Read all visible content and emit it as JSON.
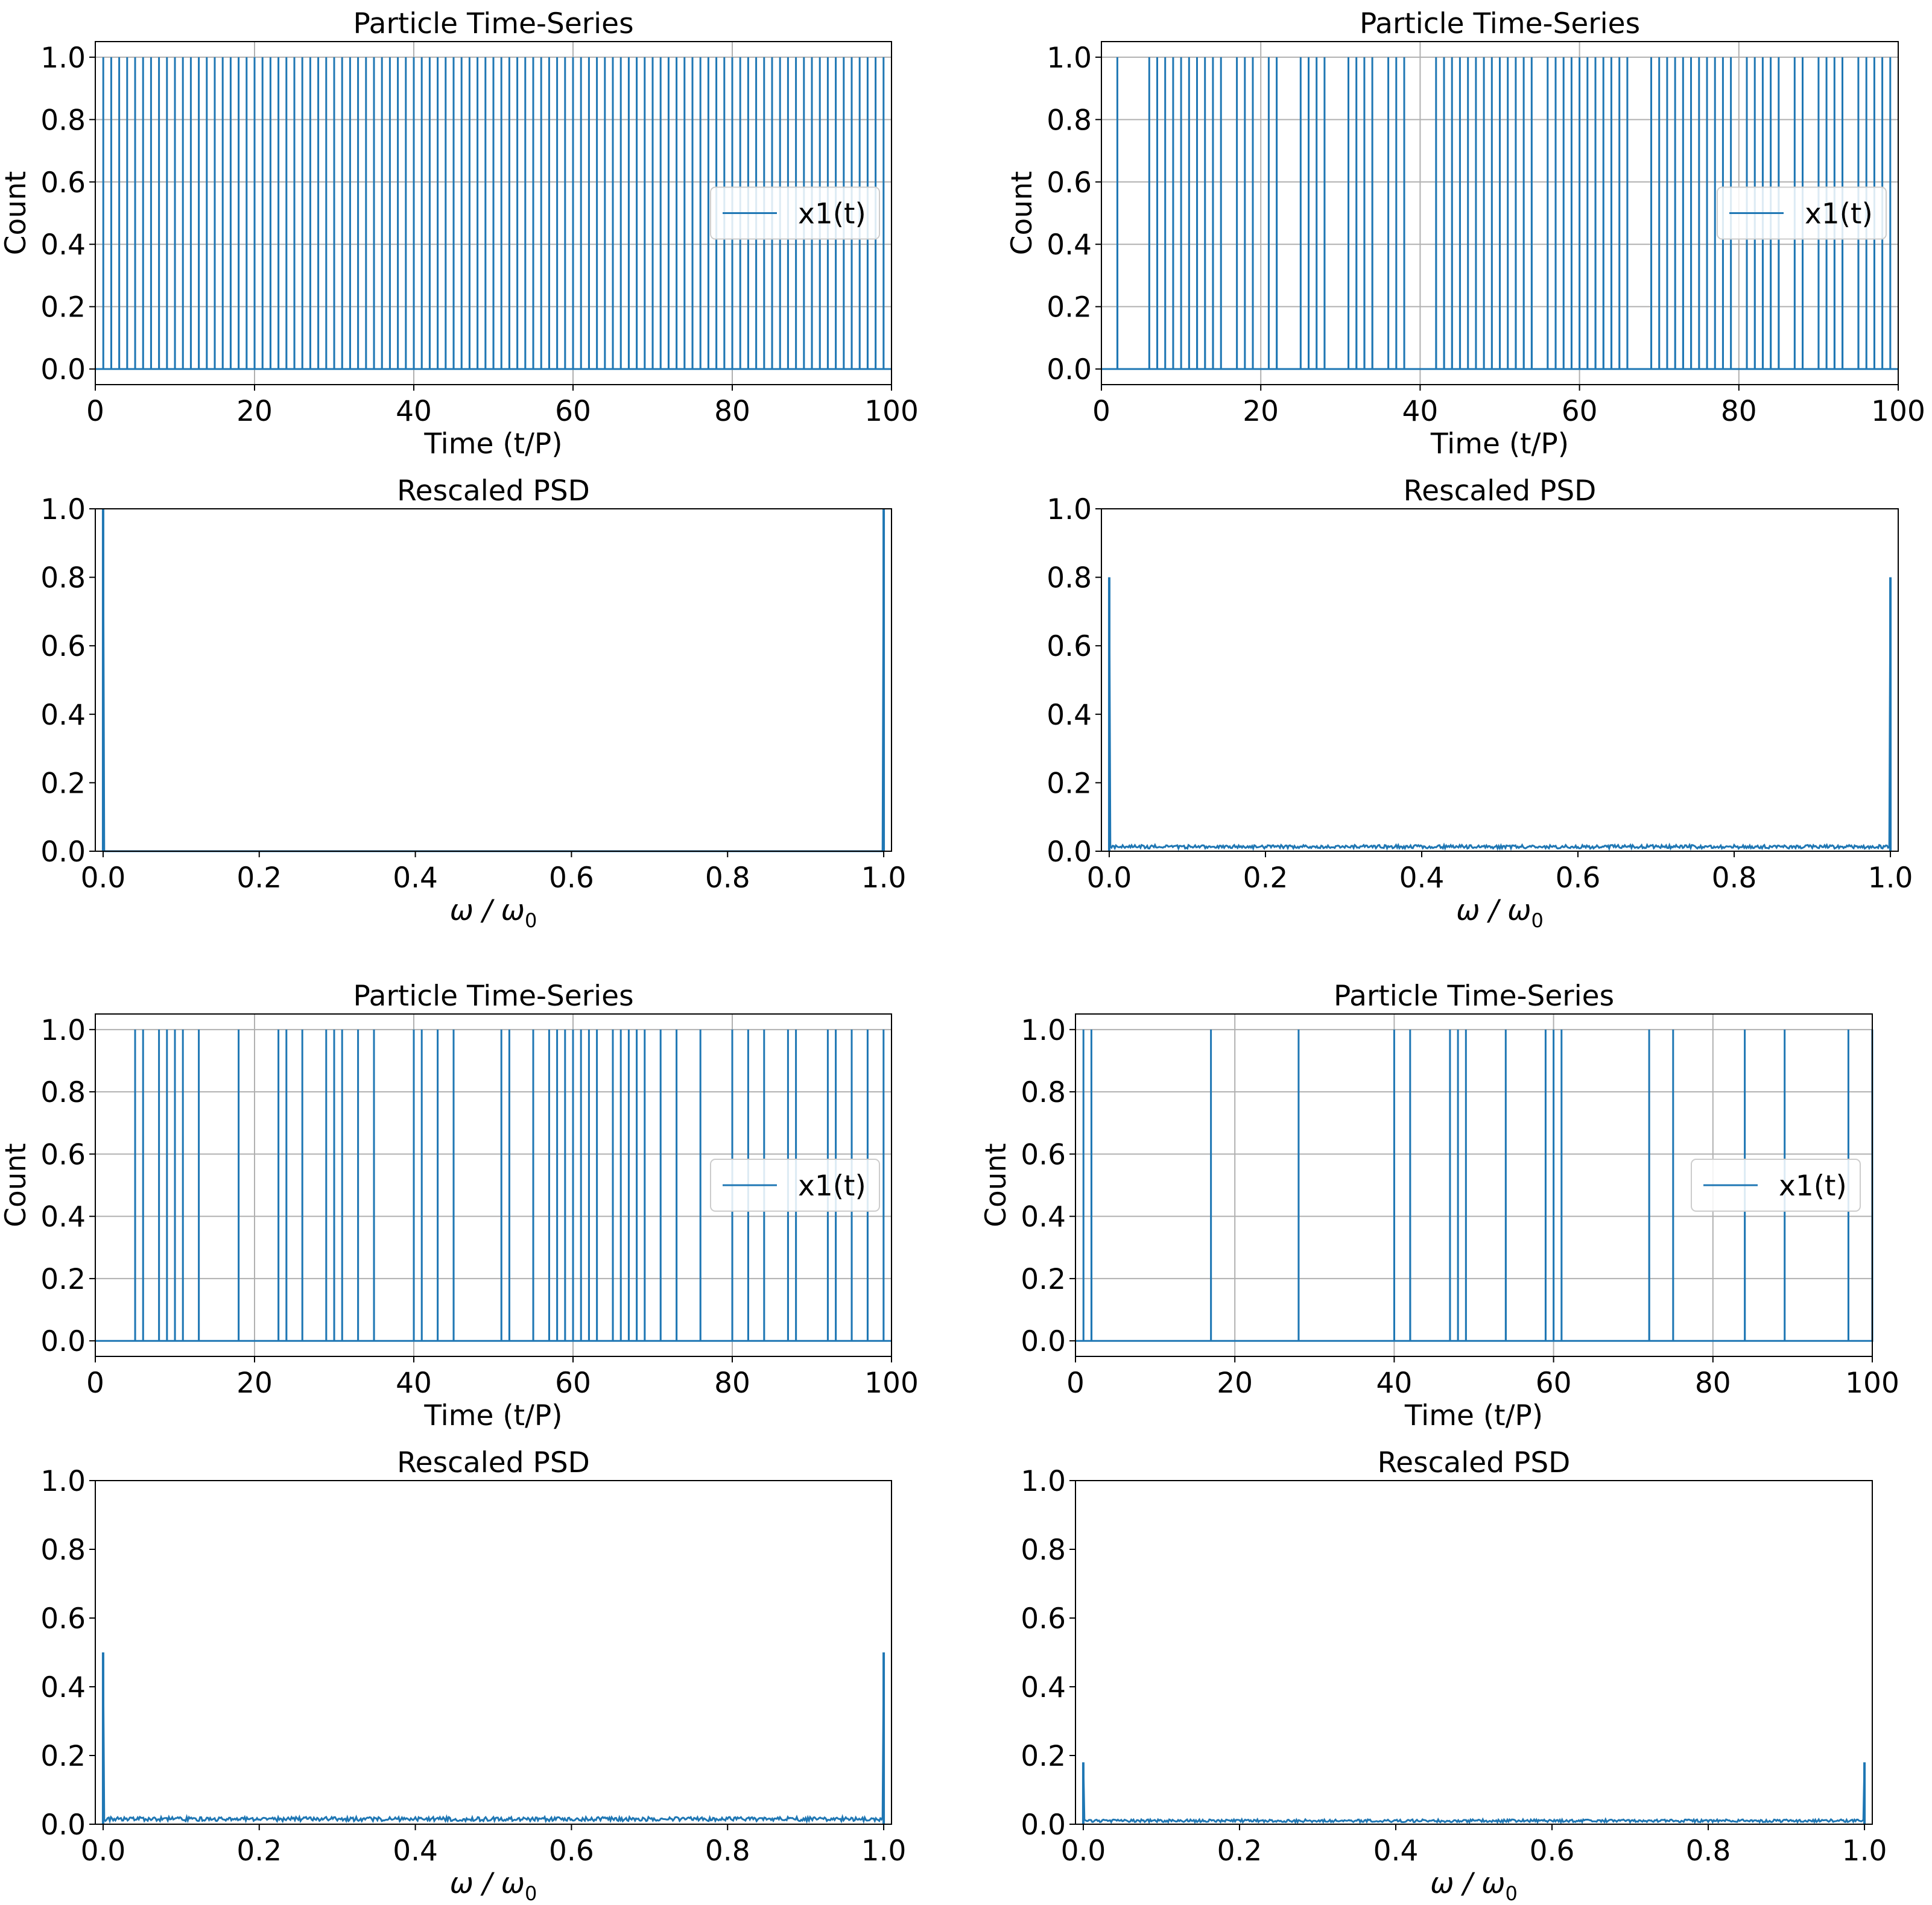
{
  "figure": {
    "rows": 4,
    "cols": 2,
    "line_color": "#1f77b4",
    "grid_color": "#b0b0b0"
  },
  "chart_data": [
    {
      "type": "line",
      "title": "Particle Time-Series",
      "xlabel": "Time (t/P)",
      "ylabel": "Count",
      "xlim": [
        0,
        100
      ],
      "ylim": [
        -0.05,
        1.05
      ],
      "xticks": [
        0,
        20,
        40,
        60,
        80,
        100
      ],
      "xtick_labels": [
        "0",
        "20",
        "40",
        "60",
        "80",
        "100"
      ],
      "yticks": [
        0,
        0.2,
        0.4,
        0.6,
        0.8,
        1.0
      ],
      "ytick_labels": [
        "0.0",
        "0.2",
        "0.4",
        "0.6",
        "0.8",
        "1.0"
      ],
      "grid": true,
      "legend": {
        "entries": [
          "x1(t)"
        ],
        "location": "center-right"
      },
      "series": [
        {
          "name": "x1(t)",
          "spike_times": [
            1,
            2,
            3,
            4,
            5,
            6,
            7,
            8,
            9,
            10,
            11,
            12,
            13,
            14,
            15,
            16,
            17,
            18,
            19,
            20,
            21,
            22,
            23,
            24,
            25,
            26,
            27,
            28,
            29,
            30,
            31,
            32,
            33,
            34,
            35,
            36,
            37,
            38,
            39,
            40,
            41,
            42,
            43,
            44,
            45,
            46,
            47,
            48,
            49,
            50,
            51,
            52,
            53,
            54,
            55,
            56,
            57,
            58,
            59,
            60,
            61,
            62,
            63,
            64,
            65,
            66,
            67,
            68,
            69,
            70,
            71,
            72,
            73,
            74,
            75,
            76,
            77,
            78,
            79,
            80,
            81,
            82,
            83,
            84,
            85,
            86,
            87,
            88,
            89,
            90,
            91,
            92,
            93,
            94,
            95,
            96,
            97,
            98,
            99
          ],
          "spike_height": 1
        }
      ]
    },
    {
      "type": "line",
      "title": "Particle Time-Series",
      "xlabel": "Time (t/P)",
      "ylabel": "Count",
      "xlim": [
        0,
        100
      ],
      "ylim": [
        -0.05,
        1.05
      ],
      "xticks": [
        0,
        20,
        40,
        60,
        80,
        100
      ],
      "xtick_labels": [
        "0",
        "20",
        "40",
        "60",
        "80",
        "100"
      ],
      "yticks": [
        0,
        0.2,
        0.4,
        0.6,
        0.8,
        1.0
      ],
      "ytick_labels": [
        "0.0",
        "0.2",
        "0.4",
        "0.6",
        "0.8",
        "1.0"
      ],
      "grid": true,
      "legend": {
        "entries": [
          "x1(t)"
        ],
        "location": "center-right"
      },
      "series": [
        {
          "name": "x1(t)",
          "spike_times": [
            2,
            6,
            7,
            8,
            9,
            10,
            11,
            12,
            13,
            14,
            15,
            17,
            18,
            19,
            21,
            22,
            25,
            26,
            27,
            28,
            31,
            32,
            33,
            34,
            36,
            37,
            38,
            42,
            43,
            44,
            45,
            46,
            47,
            48,
            49,
            50,
            51,
            52,
            53,
            54,
            56,
            57,
            58,
            59,
            60,
            61,
            62,
            63,
            64,
            65,
            66,
            69,
            70,
            71,
            72,
            73,
            74,
            75,
            76,
            77,
            78,
            79,
            81,
            82,
            83,
            84,
            85,
            87,
            88,
            90,
            91,
            92,
            93,
            95,
            96,
            97,
            98,
            99
          ],
          "spike_height": 1
        }
      ]
    },
    {
      "type": "line",
      "title": "Rescaled PSD",
      "xlabel": "ω / ω0",
      "ylabel": "",
      "xlim": [
        -0.01,
        1.01
      ],
      "ylim": [
        0,
        1.0
      ],
      "xticks": [
        0,
        0.2,
        0.4,
        0.6,
        0.8,
        1.0
      ],
      "xtick_labels": [
        "0.0",
        "0.2",
        "0.4",
        "0.6",
        "0.8",
        "1.0"
      ],
      "yticks": [
        0,
        0.2,
        0.4,
        0.6,
        0.8,
        1.0
      ],
      "ytick_labels": [
        "0.0",
        "0.2",
        "0.4",
        "0.6",
        "0.8",
        "1.0"
      ],
      "grid": false,
      "series": [
        {
          "name": "PSD",
          "peaks": [
            {
              "x": 0.0,
              "y": 1.0
            },
            {
              "x": 1.0,
              "y": 1.0
            }
          ],
          "noise_floor": 0.0
        }
      ]
    },
    {
      "type": "line",
      "title": "Rescaled PSD",
      "xlabel": "ω / ω0",
      "ylabel": "",
      "xlim": [
        -0.01,
        1.01
      ],
      "ylim": [
        0,
        1.0
      ],
      "xticks": [
        0,
        0.2,
        0.4,
        0.6,
        0.8,
        1.0
      ],
      "xtick_labels": [
        "0.0",
        "0.2",
        "0.4",
        "0.6",
        "0.8",
        "1.0"
      ],
      "yticks": [
        0,
        0.2,
        0.4,
        0.6,
        0.8,
        1.0
      ],
      "ytick_labels": [
        "0.0",
        "0.2",
        "0.4",
        "0.6",
        "0.8",
        "1.0"
      ],
      "grid": false,
      "series": [
        {
          "name": "PSD",
          "peaks": [
            {
              "x": 0.0,
              "y": 0.8
            },
            {
              "x": 1.0,
              "y": 0.8
            }
          ],
          "noise_floor": 0.013
        }
      ]
    },
    {
      "type": "line",
      "title": "Particle Time-Series",
      "xlabel": "Time (t/P)",
      "ylabel": "Count",
      "xlim": [
        0,
        100
      ],
      "ylim": [
        -0.05,
        1.05
      ],
      "xticks": [
        0,
        20,
        40,
        60,
        80,
        100
      ],
      "xtick_labels": [
        "0",
        "20",
        "40",
        "60",
        "80",
        "100"
      ],
      "yticks": [
        0,
        0.2,
        0.4,
        0.6,
        0.8,
        1.0
      ],
      "ytick_labels": [
        "0.0",
        "0.2",
        "0.4",
        "0.6",
        "0.8",
        "1.0"
      ],
      "grid": true,
      "legend": {
        "entries": [
          "x1(t)"
        ],
        "location": "center-right"
      },
      "series": [
        {
          "name": "x1(t)",
          "spike_times": [
            5,
            6,
            8,
            9,
            10,
            11,
            13,
            18,
            23,
            24,
            26,
            29,
            30,
            31,
            33,
            35,
            40,
            41,
            43,
            45,
            51,
            52,
            55,
            57,
            58,
            59,
            60,
            61,
            62,
            63,
            65,
            66,
            67,
            68,
            69,
            71,
            73,
            76,
            80,
            82,
            84,
            87,
            88,
            92,
            93,
            95,
            97,
            99
          ],
          "spike_height": 1
        }
      ]
    },
    {
      "type": "line",
      "title": "Particle Time-Series",
      "xlabel": "Time (t/P)",
      "ylabel": "Count",
      "xlim": [
        0,
        100
      ],
      "ylim": [
        -0.05,
        1.05
      ],
      "xticks": [
        0,
        20,
        40,
        60,
        80,
        100
      ],
      "xtick_labels": [
        "0",
        "20",
        "40",
        "60",
        "80",
        "100"
      ],
      "yticks": [
        0,
        0.2,
        0.4,
        0.6,
        0.8,
        1.0
      ],
      "ytick_labels": [
        "0.0",
        "0.2",
        "0.4",
        "0.6",
        "0.8",
        "1.0"
      ],
      "grid": true,
      "legend": {
        "entries": [
          "x1(t)"
        ],
        "location": "center-right"
      },
      "series": [
        {
          "name": "x1(t)",
          "spike_times": [
            1,
            2,
            17,
            28,
            40,
            42,
            47,
            48,
            49,
            54,
            59,
            60,
            61,
            72,
            75,
            84,
            89,
            97,
            100
          ],
          "spike_height": 1
        }
      ]
    },
    {
      "type": "line",
      "title": "Rescaled PSD",
      "xlabel": "ω / ω0",
      "ylabel": "",
      "xlim": [
        -0.01,
        1.01
      ],
      "ylim": [
        0,
        1.0
      ],
      "xticks": [
        0,
        0.2,
        0.4,
        0.6,
        0.8,
        1.0
      ],
      "xtick_labels": [
        "0.0",
        "0.2",
        "0.4",
        "0.6",
        "0.8",
        "1.0"
      ],
      "yticks": [
        0,
        0.2,
        0.4,
        0.6,
        0.8,
        1.0
      ],
      "ytick_labels": [
        "0.0",
        "0.2",
        "0.4",
        "0.6",
        "0.8",
        "1.0"
      ],
      "grid": false,
      "series": [
        {
          "name": "PSD",
          "peaks": [
            {
              "x": 0.0,
              "y": 0.5
            },
            {
              "x": 1.0,
              "y": 0.5
            }
          ],
          "noise_floor": 0.015
        }
      ]
    },
    {
      "type": "line",
      "title": "Rescaled PSD",
      "xlabel": "ω / ω0",
      "ylabel": "",
      "xlim": [
        -0.01,
        1.01
      ],
      "ylim": [
        0,
        1.0
      ],
      "xticks": [
        0,
        0.2,
        0.4,
        0.6,
        0.8,
        1.0
      ],
      "xtick_labels": [
        "0.0",
        "0.2",
        "0.4",
        "0.6",
        "0.8",
        "1.0"
      ],
      "yticks": [
        0,
        0.2,
        0.4,
        0.6,
        0.8,
        1.0
      ],
      "ytick_labels": [
        "0.0",
        "0.2",
        "0.4",
        "0.6",
        "0.8",
        "1.0"
      ],
      "grid": false,
      "series": [
        {
          "name": "PSD",
          "peaks": [
            {
              "x": 0.0,
              "y": 0.18
            },
            {
              "x": 1.0,
              "y": 0.18
            }
          ],
          "noise_floor": 0.01
        }
      ]
    }
  ]
}
